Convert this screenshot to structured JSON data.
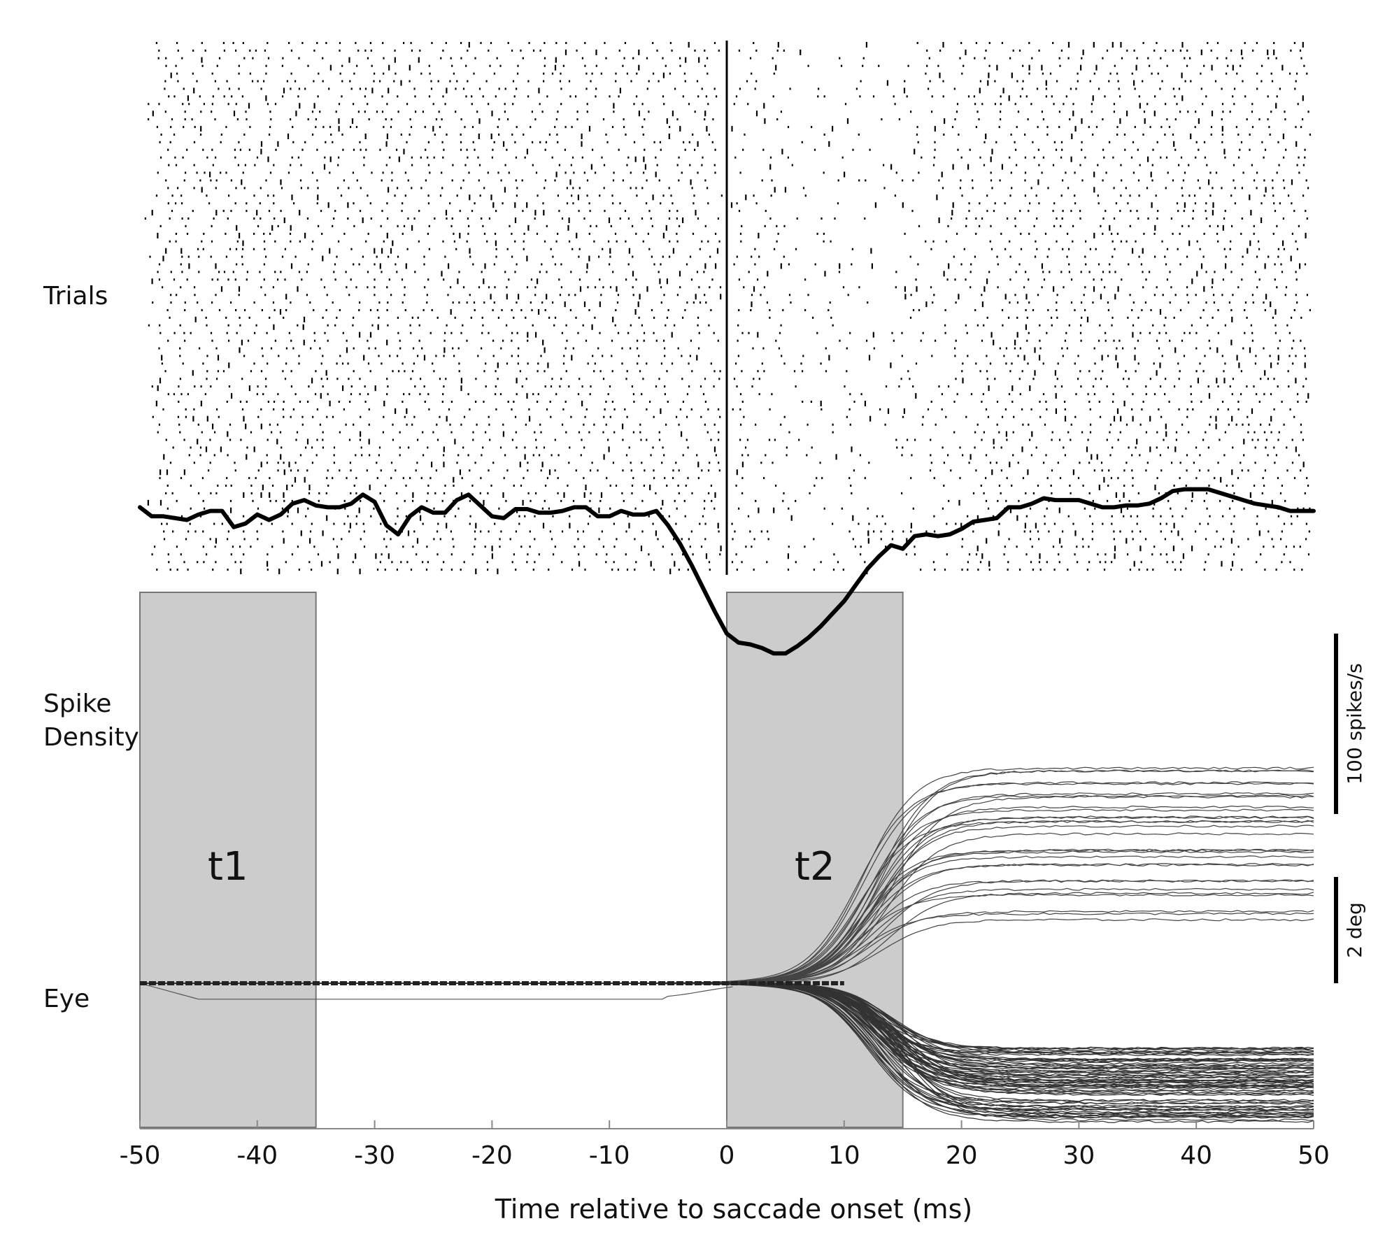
{
  "row_labels": {
    "trials": "Trials",
    "spike_density_line1": "Spike",
    "spike_density_line2": "Density",
    "eye": "Eye"
  },
  "chart_data": {
    "type": "line",
    "panels": [
      "raster",
      "spike_density",
      "eye_traces"
    ],
    "xlabel": "Time relative to saccade onset (ms)",
    "xlim": [
      -50,
      50
    ],
    "xticks": [
      -50,
      -40,
      -30,
      -20,
      -10,
      0,
      10,
      20,
      30,
      40,
      50
    ],
    "xtick_labels": [
      "-50",
      "-40",
      "-30",
      "-20",
      "-10",
      "0",
      "10",
      "20",
      "30",
      "40",
      "50"
    ],
    "event_marker_x": 0,
    "windows": [
      {
        "name": "t1",
        "x": [
          -50,
          -35
        ]
      },
      {
        "name": "t2",
        "x": [
          0,
          15
        ]
      }
    ],
    "window_color": "#cccccc",
    "scale_bars": {
      "spike_density": {
        "label": "100 spikes/s",
        "value": 100
      },
      "eye": {
        "label": "2 deg",
        "value": 2
      }
    },
    "spike_density": {
      "unit": "spikes/s",
      "x": [
        -50,
        -49,
        -48,
        -47,
        -46,
        -45,
        -44,
        -43,
        -42,
        -41,
        -40,
        -39,
        -38,
        -37,
        -36,
        -35,
        -34,
        -33,
        -32,
        -31,
        -30,
        -29,
        -28,
        -27,
        -26,
        -25,
        -24,
        -23,
        -22,
        -21,
        -20,
        -19,
        -18,
        -17,
        -16,
        -15,
        -14,
        -13,
        -12,
        -11,
        -10,
        -9,
        -8,
        -7,
        -6,
        -5,
        -4,
        -3,
        -2,
        -1,
        0,
        1,
        2,
        3,
        4,
        5,
        6,
        7,
        8,
        9,
        10,
        11,
        12,
        13,
        14,
        15,
        16,
        17,
        18,
        19,
        20,
        21,
        22,
        23,
        24,
        25,
        26,
        27,
        28,
        29,
        30,
        31,
        32,
        33,
        34,
        35,
        36,
        37,
        38,
        39,
        40,
        41,
        42,
        43,
        44,
        45,
        46,
        47,
        48,
        49,
        50
      ],
      "y": [
        170,
        165,
        165,
        164,
        163,
        166,
        168,
        168,
        159,
        161,
        166,
        163,
        166,
        172,
        174,
        171,
        170,
        170,
        172,
        177,
        173,
        160,
        155,
        165,
        170,
        167,
        167,
        174,
        177,
        171,
        165,
        164,
        169,
        169,
        167,
        167,
        168,
        170,
        170,
        165,
        165,
        168,
        166,
        166,
        168,
        160,
        150,
        138,
        125,
        112,
        100,
        95,
        94,
        92,
        89,
        89,
        93,
        98,
        104,
        111,
        118,
        127,
        136,
        143,
        149,
        147,
        154,
        155,
        154,
        155,
        158,
        162,
        163,
        164,
        170,
        170,
        172,
        175,
        174,
        174,
        174,
        172,
        170,
        170,
        171,
        171,
        172,
        175,
        179,
        180,
        180,
        180,
        178,
        176,
        174,
        172,
        171,
        170,
        168,
        168,
        168
      ]
    },
    "eye_traces": {
      "unit": "deg",
      "baseline": 0,
      "upward_endpoints_range": [
        1.1,
        4.2
      ],
      "downward_endpoints_range": [
        -1.2,
        -2.6
      ]
    }
  }
}
